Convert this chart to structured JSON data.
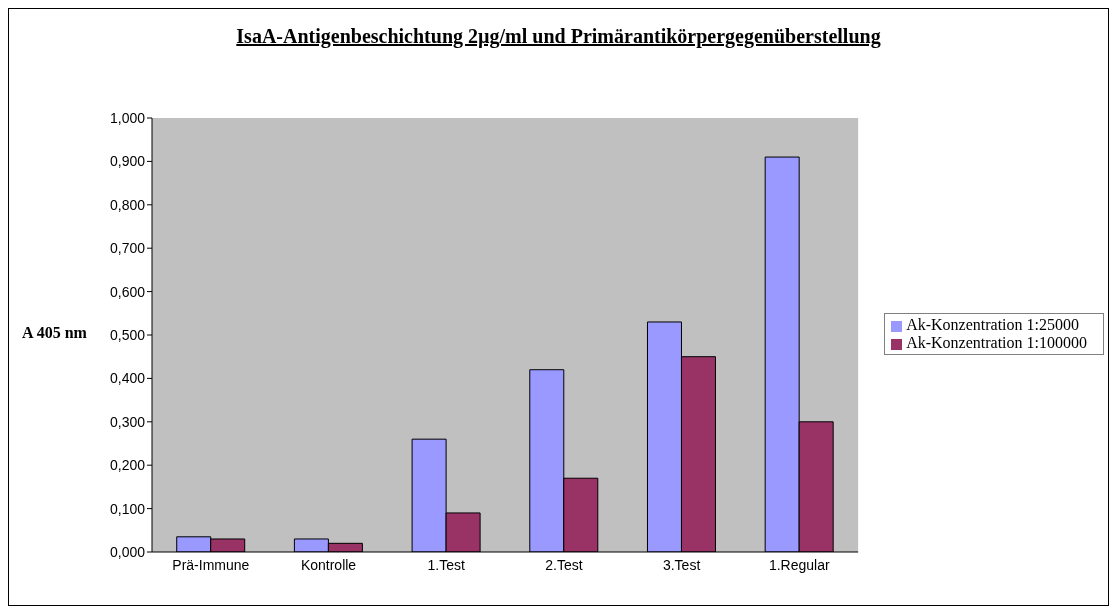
{
  "chart_data": {
    "type": "bar",
    "title": "IsaA-Antigenbeschichtung 2µg/ml und Primärantikörpergegenüberstellung",
    "ylabel": "A 405 nm",
    "categories": [
      "Prä-Immune",
      "Kontrolle",
      "1.Test",
      "2.Test",
      "3.Test",
      "1.Regular"
    ],
    "series": [
      {
        "name": "Ak-Konzentration 1:25000",
        "color": "#9999ff",
        "values": [
          0.035,
          0.03,
          0.26,
          0.42,
          0.53,
          0.91
        ]
      },
      {
        "name": "Ak-Konzentration 1:100000",
        "color": "#993366",
        "values": [
          0.03,
          0.02,
          0.09,
          0.17,
          0.45,
          0.3
        ]
      }
    ],
    "ylim": [
      0,
      1
    ],
    "yticks": [
      {
        "value": 0,
        "label": "0,000"
      },
      {
        "value": 0.1,
        "label": "0,100"
      },
      {
        "value": 0.2,
        "label": "0,200"
      },
      {
        "value": 0.3,
        "label": "0,300"
      },
      {
        "value": 0.4,
        "label": "0,400"
      },
      {
        "value": 0.5,
        "label": "0,500"
      },
      {
        "value": 0.6,
        "label": "0,600"
      },
      {
        "value": 0.7,
        "label": "0,700"
      },
      {
        "value": 0.8,
        "label": "0,800"
      },
      {
        "value": 0.9,
        "label": "0,900"
      },
      {
        "value": 1,
        "label": "1,000"
      }
    ],
    "legend": "right"
  }
}
